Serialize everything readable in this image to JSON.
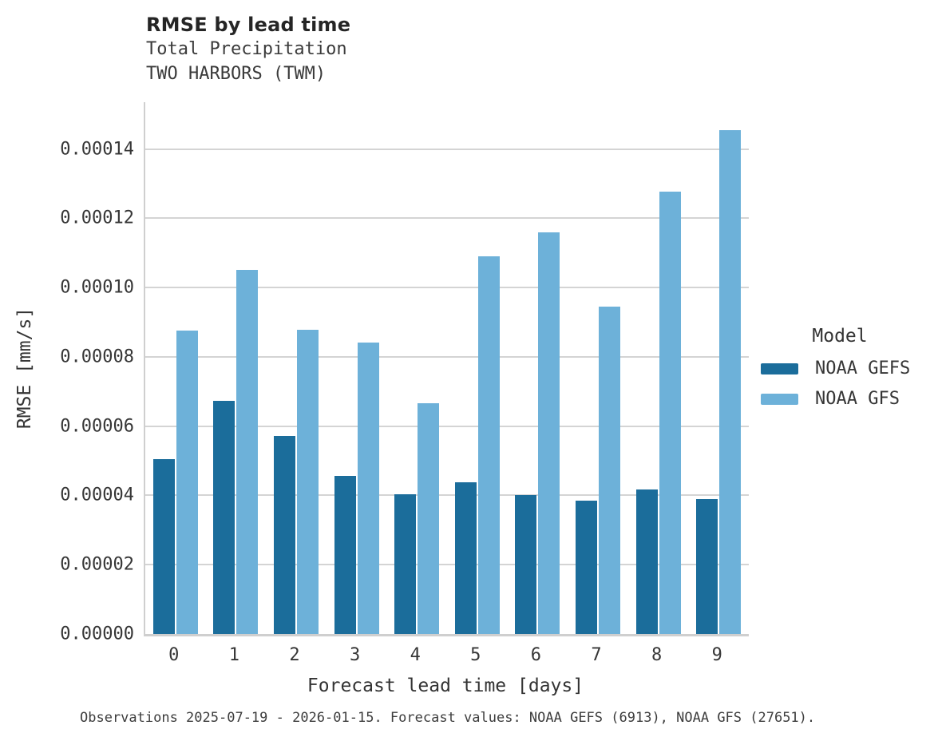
{
  "header": {
    "title": "RMSE by lead time",
    "subtitle1": "Total Precipitation",
    "subtitle2": "TWO HARBORS (TWM)"
  },
  "chart_data": {
    "type": "bar",
    "title": "RMSE by lead time",
    "subtitle": [
      "Total Precipitation",
      "TWO HARBORS (TWM)"
    ],
    "xlabel": "Forecast lead time [days]",
    "ylabel": "RMSE [mm/s]",
    "categories": [
      "0",
      "1",
      "2",
      "3",
      "4",
      "5",
      "6",
      "7",
      "8",
      "9"
    ],
    "series": [
      {
        "name": "NOAA GEFS",
        "color": "#1b6d9b",
        "values": [
          5.05e-05,
          6.74e-05,
          5.72e-05,
          4.57e-05,
          4.03e-05,
          4.37e-05,
          4.02e-05,
          3.85e-05,
          4.18e-05,
          3.9e-05
        ]
      },
      {
        "name": "NOAA GFS",
        "color": "#6db1d9",
        "values": [
          8.75e-05,
          0.0001051,
          8.78e-05,
          8.41e-05,
          6.65e-05,
          0.000109,
          0.000116,
          9.46e-05,
          0.0001276,
          0.0001455
        ]
      }
    ],
    "ylim": [
      0,
      0.0001535
    ],
    "yticks": [
      {
        "value": 0.0,
        "label": "0.00000"
      },
      {
        "value": 2e-05,
        "label": "0.00002"
      },
      {
        "value": 4e-05,
        "label": "0.00004"
      },
      {
        "value": 6e-05,
        "label": "0.00006"
      },
      {
        "value": 8e-05,
        "label": "0.00008"
      },
      {
        "value": 0.0001,
        "label": "0.00010"
      },
      {
        "value": 0.00012,
        "label": "0.00012"
      },
      {
        "value": 0.00014,
        "label": "0.00014"
      }
    ],
    "grid": "horizontal",
    "legend_position": "right-outside"
  },
  "legend": {
    "title": "Model"
  },
  "caption": "Observations 2025-07-19 - 2026-01-15. Forecast values: NOAA GEFS (6913), NOAA GFS (27651)."
}
